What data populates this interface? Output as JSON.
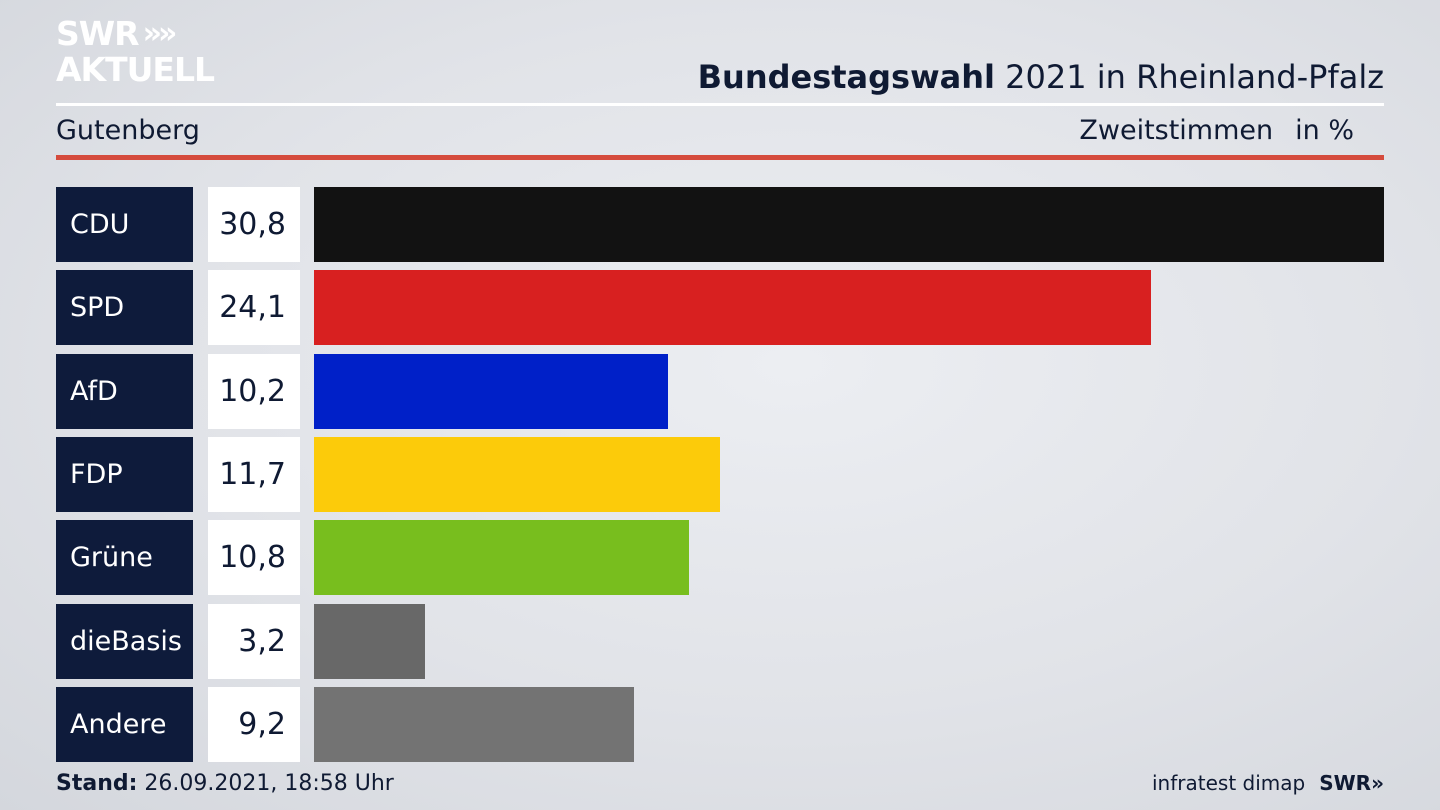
{
  "brand": {
    "line1": "SWR",
    "line1_chevrons": "»",
    "line2": "AKTUELL"
  },
  "header": {
    "title_bold": "Bundestagswahl",
    "title_rest": "2021 in Rheinland-Pfalz",
    "region": "Gutenberg",
    "measure": "Zweitstimmen",
    "unit": "in %"
  },
  "footer": {
    "stand_label": "Stand:",
    "stand_value": "26.09.2021, 18:58 Uhr",
    "source": "infratest dimap",
    "logo": "SWR»"
  },
  "colors": {
    "accent_red_rule": "#d54b3d",
    "label_bg": "#0e1b3b"
  },
  "chart_data": {
    "type": "bar",
    "orientation": "horizontal",
    "categories": [
      "CDU",
      "SPD",
      "AfD",
      "FDP",
      "Grüne",
      "dieBasis",
      "Andere"
    ],
    "values": [
      30.8,
      24.1,
      10.2,
      11.7,
      10.8,
      3.2,
      9.2
    ],
    "value_labels": [
      "30,8",
      "24,1",
      "10,2",
      "11,7",
      "10,8",
      "3,2",
      "9,2"
    ],
    "colors": [
      "#121212",
      "#d82020",
      "#0020c8",
      "#fccb0a",
      "#78be1e",
      "#686868",
      "#737373"
    ],
    "xlim": [
      0,
      30.8
    ],
    "title": "Bundestagswahl 2021 in Rheinland-Pfalz",
    "subtitle": "Gutenberg",
    "xlabel": "Zweitstimmen in %",
    "grid": false,
    "legend": "none"
  }
}
